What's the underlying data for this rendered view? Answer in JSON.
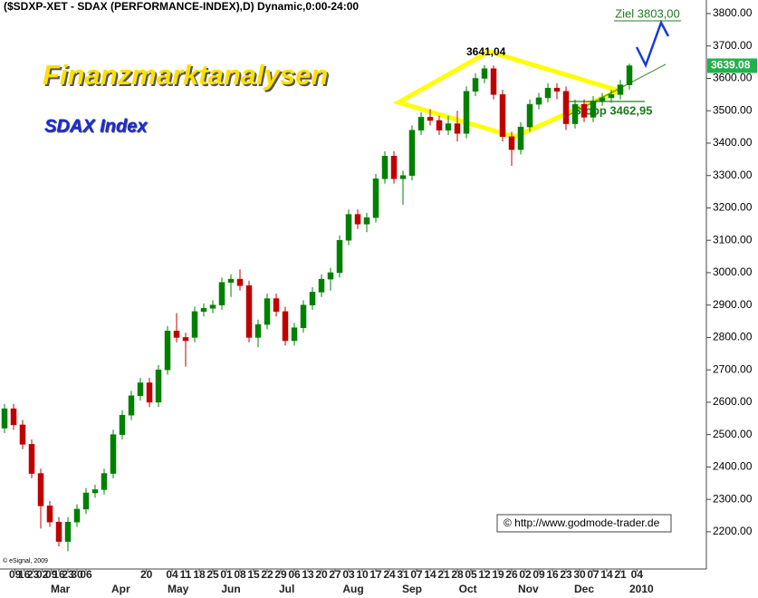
{
  "chart_data": {
    "type": "candlestick",
    "title": "($SDXP-XET - SDAX (PERFORMANCE-INDEX),D) Dynamic,0:00-24:00",
    "xlim": [
      0,
      234
    ],
    "ylim": [
      2085,
      3842
    ],
    "yticks": [
      {
        "value": 2200,
        "label": "2200.00"
      },
      {
        "value": 2300,
        "label": "2300.00"
      },
      {
        "value": 2400,
        "label": "2400.00"
      },
      {
        "value": 2500,
        "label": "2500.00"
      },
      {
        "value": 2600,
        "label": "2600.00"
      },
      {
        "value": 2700,
        "label": "2700.00"
      },
      {
        "value": 2800,
        "label": "2800.00"
      },
      {
        "value": 2900,
        "label": "2900.00"
      },
      {
        "value": 3000,
        "label": "3000.00"
      },
      {
        "value": 3100,
        "label": "3100.00"
      },
      {
        "value": 3200,
        "label": "3200.00"
      },
      {
        "value": 3300,
        "label": "3300.00"
      },
      {
        "value": 3400,
        "label": "3400.00"
      },
      {
        "value": 3500,
        "label": "3500.00"
      },
      {
        "value": 3600,
        "label": "3600.00"
      },
      {
        "value": 3700,
        "label": "3700.00"
      },
      {
        "value": 3800,
        "label": "3800.00"
      }
    ],
    "xticks": [
      {
        "value": 5,
        "label": "09"
      },
      {
        "value": 8,
        "label": "16"
      },
      {
        "value": 11,
        "label": "23"
      },
      {
        "value": 14,
        "label": "02"
      },
      {
        "value": 17,
        "label": "09"
      },
      {
        "value": 19.5,
        "label": "16"
      },
      {
        "value": 22.5,
        "label": "23"
      },
      {
        "value": 25.5,
        "label": "30"
      },
      {
        "value": 28.5,
        "label": "06"
      },
      {
        "value": 48.5,
        "label": "20"
      },
      {
        "value": 57,
        "label": "04"
      },
      {
        "value": 61.5,
        "label": "11"
      },
      {
        "value": 66,
        "label": "18"
      },
      {
        "value": 70.5,
        "label": "25"
      },
      {
        "value": 75,
        "label": "01"
      },
      {
        "value": 79.5,
        "label": "08"
      },
      {
        "value": 84,
        "label": "15"
      },
      {
        "value": 88.5,
        "label": "22"
      },
      {
        "value": 93,
        "label": "29"
      },
      {
        "value": 97.5,
        "label": "06"
      },
      {
        "value": 102,
        "label": "13"
      },
      {
        "value": 106.5,
        "label": "20"
      },
      {
        "value": 111,
        "label": "27"
      },
      {
        "value": 115.5,
        "label": "03"
      },
      {
        "value": 120,
        "label": "10"
      },
      {
        "value": 124.5,
        "label": "17"
      },
      {
        "value": 129,
        "label": "24"
      },
      {
        "value": 133.5,
        "label": "31"
      },
      {
        "value": 138,
        "label": "07"
      },
      {
        "value": 142.5,
        "label": "14"
      },
      {
        "value": 147,
        "label": "21"
      },
      {
        "value": 151.5,
        "label": "28"
      },
      {
        "value": 156,
        "label": "05"
      },
      {
        "value": 160.5,
        "label": "12"
      },
      {
        "value": 165,
        "label": "19"
      },
      {
        "value": 169.5,
        "label": "26"
      },
      {
        "value": 174,
        "label": "02"
      },
      {
        "value": 178.5,
        "label": "09"
      },
      {
        "value": 183,
        "label": "16"
      },
      {
        "value": 187.5,
        "label": "23"
      },
      {
        "value": 192,
        "label": "30"
      },
      {
        "value": 196.5,
        "label": "07"
      },
      {
        "value": 201,
        "label": "14"
      },
      {
        "value": 205.5,
        "label": "21"
      },
      {
        "value": 211,
        "label": "04"
      }
    ],
    "month_ticks": [
      {
        "value": 20,
        "label": "Mar"
      },
      {
        "value": 40,
        "label": "Apr"
      },
      {
        "value": 59,
        "label": "May"
      },
      {
        "value": 76.5,
        "label": "Jun"
      },
      {
        "value": 95,
        "label": "Jul"
      },
      {
        "value": 117,
        "label": "Aug"
      },
      {
        "value": 136.5,
        "label": "Sep"
      },
      {
        "value": 155,
        "label": "Oct"
      },
      {
        "value": 175,
        "label": "Nov"
      },
      {
        "value": 193.5,
        "label": "Dec"
      },
      {
        "value": 212.5,
        "label": "2010"
      }
    ],
    "candles": {
      "up_color": "#008000",
      "down_color": "#c00000",
      "x": [
        1.5,
        4.5,
        7.5,
        10.5,
        13.5,
        16.5,
        19.5,
        22.5,
        25.5,
        28.5,
        31.5,
        34.5,
        37.5,
        40.5,
        43.5,
        46.5,
        49.5,
        52.5,
        55.5,
        58.5,
        61.5,
        64.5,
        67.5,
        70.5,
        73.5,
        76.5,
        79.5,
        82.5,
        85.5,
        88.5,
        91.5,
        94.5,
        97.5,
        100.5,
        103.5,
        106.5,
        109.5,
        112.5,
        115.5,
        118.5,
        121.5,
        124.5,
        127.5,
        130.5,
        133.5,
        136.5,
        139.5,
        142.5,
        145.5,
        148.5,
        151.5,
        154.5,
        157.5,
        160.5,
        163.5,
        166.5,
        169.5,
        172.5,
        175.5,
        178.5,
        181.5,
        184.5,
        187.5,
        190.5,
        193.5,
        196.5,
        199.5,
        202.5,
        205.5,
        208.5
      ],
      "open": [
        2520,
        2580,
        2530,
        2470,
        2380,
        2280,
        2230,
        2170,
        2230,
        2270,
        2320,
        2330,
        2380,
        2500,
        2560,
        2620,
        2660,
        2600,
        2700,
        2820,
        2800,
        2800,
        2880,
        2890,
        2900,
        2970,
        2980,
        2960,
        2800,
        2840,
        2920,
        2880,
        2790,
        2830,
        2900,
        2940,
        2980,
        3000,
        3100,
        3180,
        3150,
        3170,
        3290,
        3360,
        3290,
        3300,
        3440,
        3480,
        3470,
        3440,
        3460,
        3430,
        3560,
        3600,
        3630,
        3550,
        3420,
        3380,
        3450,
        3520,
        3540,
        3570,
        3560,
        3460,
        3520,
        3480,
        3530,
        3540,
        3550,
        3580
      ],
      "high": [
        2595,
        2595,
        2545,
        2485,
        2395,
        2295,
        2245,
        2245,
        2285,
        2335,
        2345,
        2395,
        2515,
        2575,
        2635,
        2675,
        2675,
        2715,
        2835,
        2875,
        2815,
        2895,
        2905,
        2915,
        2985,
        2995,
        3010,
        2975,
        2855,
        2935,
        2935,
        2895,
        2845,
        2915,
        2955,
        2995,
        3015,
        3115,
        3195,
        3195,
        3185,
        3305,
        3375,
        3375,
        3315,
        3455,
        3495,
        3505,
        3485,
        3485,
        3500,
        3575,
        3615,
        3641.04,
        3640,
        3565,
        3435,
        3465,
        3535,
        3555,
        3585,
        3585,
        3575,
        3535,
        3535,
        3545,
        3555,
        3565,
        3595,
        3645
      ],
      "low": [
        2505,
        2515,
        2455,
        2365,
        2210,
        2215,
        2155,
        2140,
        2215,
        2255,
        2305,
        2315,
        2365,
        2485,
        2545,
        2605,
        2585,
        2585,
        2685,
        2785,
        2710,
        2785,
        2865,
        2875,
        2885,
        2925,
        2945,
        2785,
        2770,
        2825,
        2865,
        2775,
        2775,
        2815,
        2885,
        2925,
        2945,
        2985,
        3085,
        3135,
        3125,
        3155,
        3275,
        3275,
        3210,
        3285,
        3425,
        3455,
        3425,
        3425,
        3405,
        3415,
        3545,
        3585,
        3535,
        3405,
        3330,
        3365,
        3435,
        3505,
        3525,
        3535,
        3440,
        3445,
        3465,
        3465,
        3515,
        3525,
        3535,
        3565
      ],
      "close": [
        2580,
        2530,
        2470,
        2380,
        2280,
        2230,
        2170,
        2230,
        2270,
        2320,
        2330,
        2380,
        2500,
        2560,
        2620,
        2660,
        2600,
        2700,
        2820,
        2800,
        2790,
        2880,
        2890,
        2900,
        2970,
        2980,
        2960,
        2800,
        2840,
        2920,
        2880,
        2790,
        2830,
        2900,
        2940,
        2980,
        3000,
        3100,
        3180,
        3150,
        3170,
        3290,
        3360,
        3290,
        3300,
        3440,
        3480,
        3470,
        3440,
        3460,
        3430,
        3560,
        3600,
        3630,
        3550,
        3420,
        3380,
        3450,
        3520,
        3540,
        3570,
        3560,
        3460,
        3520,
        3480,
        3530,
        3540,
        3550,
        3580,
        3639.08
      ]
    },
    "last_price": {
      "value": 3639.08,
      "label": "3639.08"
    },
    "peak": {
      "value": 3641.04,
      "label": "3641,04"
    },
    "annotations": {
      "brand": "Finanzmarktanalysen",
      "index_name": "SDAX Index",
      "target": "Ziel 3803,00",
      "stop": "Stopp 3462,95",
      "source": "© http://www.godmode-trader.de",
      "provider": "© eSignal, 2009"
    }
  }
}
